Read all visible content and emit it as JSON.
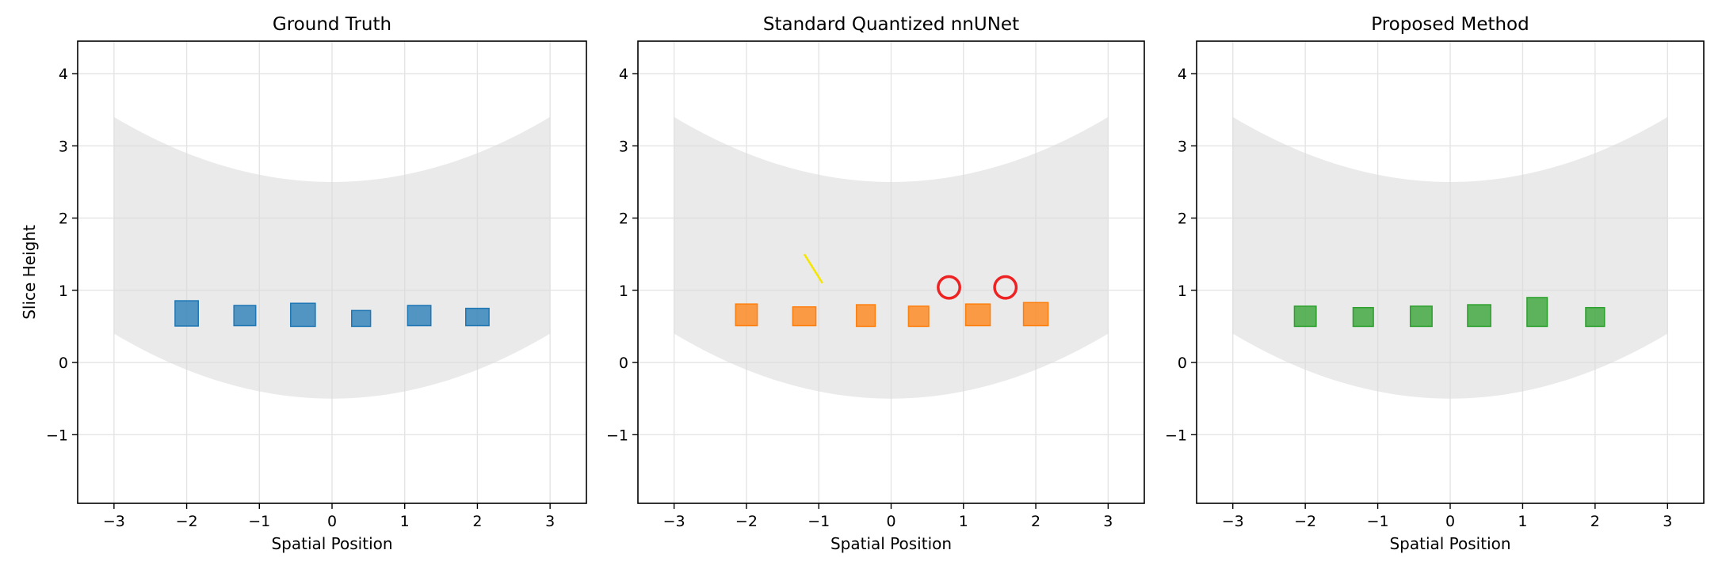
{
  "chart_data": [
    {
      "type": "scatter",
      "title": "Ground Truth",
      "xlabel": "Spatial Position",
      "ylabel": "Slice Height",
      "xlim": [
        -3.5,
        3.5
      ],
      "ylim": [
        -1.95,
        4.45
      ],
      "xticks": [
        -3,
        -2,
        -1,
        0,
        1,
        2,
        3
      ],
      "yticks": [
        -1,
        0,
        1,
        2,
        3,
        4
      ],
      "xtick_labels": [
        "−3",
        "−2",
        "−1",
        "0",
        "1",
        "2",
        "3"
      ],
      "ytick_labels": [
        "−1",
        "0",
        "1",
        "2",
        "3",
        "4"
      ],
      "grid": true,
      "band": {
        "x_range": [
          -3,
          3
        ],
        "lower": "0.4 at x=±3 down to -0.5 at x=0",
        "upper": "3.4 at x=±3 down to 2.5 at x=0",
        "color": "#d9d9d9"
      },
      "marker_color": "#1f77b4",
      "markers": [
        {
          "x": -2.0,
          "y": 0.68,
          "w": 0.32,
          "h": 0.35
        },
        {
          "x": -1.2,
          "y": 0.65,
          "w": 0.3,
          "h": 0.28
        },
        {
          "x": -0.4,
          "y": 0.66,
          "w": 0.34,
          "h": 0.32
        },
        {
          "x": 0.4,
          "y": 0.61,
          "w": 0.26,
          "h": 0.22
        },
        {
          "x": 1.2,
          "y": 0.65,
          "w": 0.32,
          "h": 0.28
        },
        {
          "x": 2.0,
          "y": 0.63,
          "w": 0.32,
          "h": 0.24
        }
      ],
      "annotations": []
    },
    {
      "type": "scatter",
      "title": "Standard Quantized nnUNet",
      "xlabel": "Spatial Position",
      "ylabel": "",
      "xlim": [
        -3.5,
        3.5
      ],
      "ylim": [
        -1.95,
        4.45
      ],
      "xticks": [
        -3,
        -2,
        -1,
        0,
        1,
        2,
        3
      ],
      "yticks": [
        -1,
        0,
        1,
        2,
        3,
        4
      ],
      "xtick_labels": [
        "−3",
        "−2",
        "−1",
        "0",
        "1",
        "2",
        "3"
      ],
      "ytick_labels": [
        "−1",
        "0",
        "1",
        "2",
        "3",
        "4"
      ],
      "grid": true,
      "band": {
        "x_range": [
          -3,
          3
        ],
        "color": "#d9d9d9"
      },
      "marker_color": "#ff7f0e",
      "markers": [
        {
          "x": -2.0,
          "y": 0.66,
          "w": 0.3,
          "h": 0.3
        },
        {
          "x": -1.2,
          "y": 0.64,
          "w": 0.32,
          "h": 0.26
        },
        {
          "x": -0.35,
          "y": 0.65,
          "w": 0.26,
          "h": 0.3
        },
        {
          "x": 0.38,
          "y": 0.64,
          "w": 0.28,
          "h": 0.28
        },
        {
          "x": 1.2,
          "y": 0.66,
          "w": 0.34,
          "h": 0.3
        },
        {
          "x": 2.0,
          "y": 0.67,
          "w": 0.34,
          "h": 0.32
        }
      ],
      "annotations": [
        {
          "kind": "circle",
          "x": 0.8,
          "y": 1.04,
          "r": 0.15,
          "color": "#ee2222"
        },
        {
          "kind": "circle",
          "x": 1.58,
          "y": 1.04,
          "r": 0.15,
          "color": "#ee2222"
        },
        {
          "kind": "line",
          "x1": -1.2,
          "y1": 1.5,
          "x2": -0.95,
          "y2": 1.1,
          "color": "#f5e600"
        }
      ]
    },
    {
      "type": "scatter",
      "title": "Proposed Method",
      "xlabel": "Spatial Position",
      "ylabel": "",
      "xlim": [
        -3.5,
        3.5
      ],
      "ylim": [
        -1.95,
        4.45
      ],
      "xticks": [
        -3,
        -2,
        -1,
        0,
        1,
        2,
        3
      ],
      "yticks": [
        -1,
        0,
        1,
        2,
        3,
        4
      ],
      "xtick_labels": [
        "−3",
        "−2",
        "−1",
        "0",
        "1",
        "2",
        "3"
      ],
      "ytick_labels": [
        "−1",
        "0",
        "1",
        "2",
        "3",
        "4"
      ],
      "grid": true,
      "band": {
        "x_range": [
          -3,
          3
        ],
        "color": "#d9d9d9"
      },
      "marker_color": "#2ca02c",
      "markers": [
        {
          "x": -2.0,
          "y": 0.64,
          "w": 0.3,
          "h": 0.28
        },
        {
          "x": -1.2,
          "y": 0.63,
          "w": 0.28,
          "h": 0.26
        },
        {
          "x": -0.4,
          "y": 0.64,
          "w": 0.3,
          "h": 0.28
        },
        {
          "x": 0.4,
          "y": 0.65,
          "w": 0.32,
          "h": 0.3
        },
        {
          "x": 1.2,
          "y": 0.7,
          "w": 0.28,
          "h": 0.4
        },
        {
          "x": 2.0,
          "y": 0.63,
          "w": 0.26,
          "h": 0.26
        }
      ],
      "annotations": []
    }
  ]
}
